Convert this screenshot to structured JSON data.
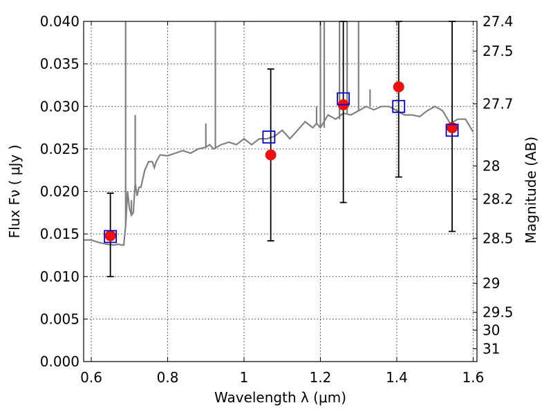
{
  "chart_data": {
    "type": "scatter",
    "title": "",
    "xlabel": "Wavelength  λ (μm)",
    "ylabel": "Flux  Fν  ( μJy )",
    "ylabel_right": "Magnitude (AB)",
    "xlim": [
      0.58,
      1.61
    ],
    "ylim": [
      0.0,
      0.04
    ],
    "grid": true,
    "x_ticks": [
      0.6,
      0.8,
      1.0,
      1.2,
      1.4,
      1.6
    ],
    "x_tick_labels": [
      "0.6",
      "0.8",
      "1",
      "1.2",
      "1.4",
      "1.6"
    ],
    "y_ticks": [
      0.0,
      0.005,
      0.01,
      0.015,
      0.02,
      0.025,
      0.03,
      0.035,
      0.04
    ],
    "y_tick_labels": [
      "0.000",
      "0.005",
      "0.010",
      "0.015",
      "0.020",
      "0.025",
      "0.030",
      "0.035",
      "0.040"
    ],
    "right_ticks": [
      {
        "label": "27.4",
        "flux": 0.04
      },
      {
        "label": "27.5",
        "flux": 0.0365
      },
      {
        "label": "27.7",
        "flux": 0.0303
      },
      {
        "label": "28",
        "flux": 0.023
      },
      {
        "label": "28.2",
        "flux": 0.0191
      },
      {
        "label": "28.5",
        "flux": 0.0145
      },
      {
        "label": "29",
        "flux": 0.0092
      },
      {
        "label": "29.5",
        "flux": 0.0058
      },
      {
        "label": "30",
        "flux": 0.0037
      },
      {
        "label": "31",
        "flux": 0.0015
      }
    ],
    "colors": {
      "template": "#808080",
      "observed": "#ee1111",
      "model": "#0000cc",
      "errorbar": "#000000"
    },
    "series": [
      {
        "kind": "model_spectrum",
        "x": [
          0.58,
          0.6,
          0.62,
          0.64,
          0.66,
          0.67,
          0.68,
          0.685,
          0.69,
          0.695,
          0.7,
          0.705,
          0.71,
          0.715,
          0.72,
          0.725,
          0.73,
          0.74,
          0.75,
          0.76,
          0.765,
          0.77,
          0.78,
          0.8,
          0.82,
          0.84,
          0.86,
          0.88,
          0.9,
          0.91,
          0.92,
          0.94,
          0.96,
          0.98,
          1.0,
          1.02,
          1.04,
          1.06,
          1.08,
          1.1,
          1.12,
          1.14,
          1.16,
          1.18,
          1.19,
          1.2,
          1.22,
          1.24,
          1.26,
          1.28,
          1.3,
          1.32,
          1.34,
          1.36,
          1.38,
          1.4,
          1.42,
          1.44,
          1.46,
          1.48,
          1.5,
          1.52,
          1.54,
          1.56,
          1.58,
          1.6
        ],
        "y": [
          0.0143,
          0.0143,
          0.014,
          0.0138,
          0.0137,
          0.0138,
          0.0137,
          0.0137,
          0.016,
          0.02,
          0.018,
          0.0172,
          0.0175,
          0.021,
          0.0195,
          0.0205,
          0.0205,
          0.0225,
          0.0235,
          0.0235,
          0.0228,
          0.0235,
          0.0243,
          0.0242,
          0.0245,
          0.0248,
          0.0245,
          0.025,
          0.0252,
          0.0255,
          0.025,
          0.0255,
          0.0258,
          0.0255,
          0.0262,
          0.0255,
          0.0262,
          0.0262,
          0.0265,
          0.0272,
          0.0262,
          0.0272,
          0.0282,
          0.0275,
          0.028,
          0.0275,
          0.029,
          0.0285,
          0.0292,
          0.029,
          0.0295,
          0.03,
          0.0296,
          0.03,
          0.03,
          0.0295,
          0.029,
          0.029,
          0.0288,
          0.0295,
          0.03,
          0.0295,
          0.028,
          0.0285,
          0.0285,
          0.027
        ],
        "spikes": [
          {
            "x": 0.69,
            "y": 0.04
          },
          {
            "x": 0.705,
            "y": 0.019
          },
          {
            "x": 0.715,
            "y": 0.029
          },
          {
            "x": 0.9,
            "y": 0.028
          },
          {
            "x": 0.925,
            "y": 0.04
          },
          {
            "x": 1.19,
            "y": 0.03
          },
          {
            "x": 1.2,
            "y": 0.04
          },
          {
            "x": 1.21,
            "y": 0.04
          },
          {
            "x": 1.25,
            "y": 0.04
          },
          {
            "x": 1.27,
            "y": 0.04
          },
          {
            "x": 1.3,
            "y": 0.04
          },
          {
            "x": 1.33,
            "y": 0.032
          }
        ]
      },
      {
        "kind": "observed",
        "x": [
          0.65,
          1.07,
          1.26,
          1.405,
          1.545
        ],
        "y": [
          0.0148,
          0.0243,
          0.0302,
          0.0323,
          0.0275
        ],
        "err_low": [
          0.01,
          0.0142,
          0.0187,
          0.0217,
          0.0153
        ],
        "err_high": [
          0.0198,
          0.0344,
          0.04,
          0.04,
          0.04
        ]
      },
      {
        "kind": "model_photometry",
        "x": [
          0.65,
          1.065,
          1.26,
          1.405,
          1.545
        ],
        "y": [
          0.0147,
          0.0264,
          0.0309,
          0.03,
          0.0272
        ]
      }
    ]
  }
}
